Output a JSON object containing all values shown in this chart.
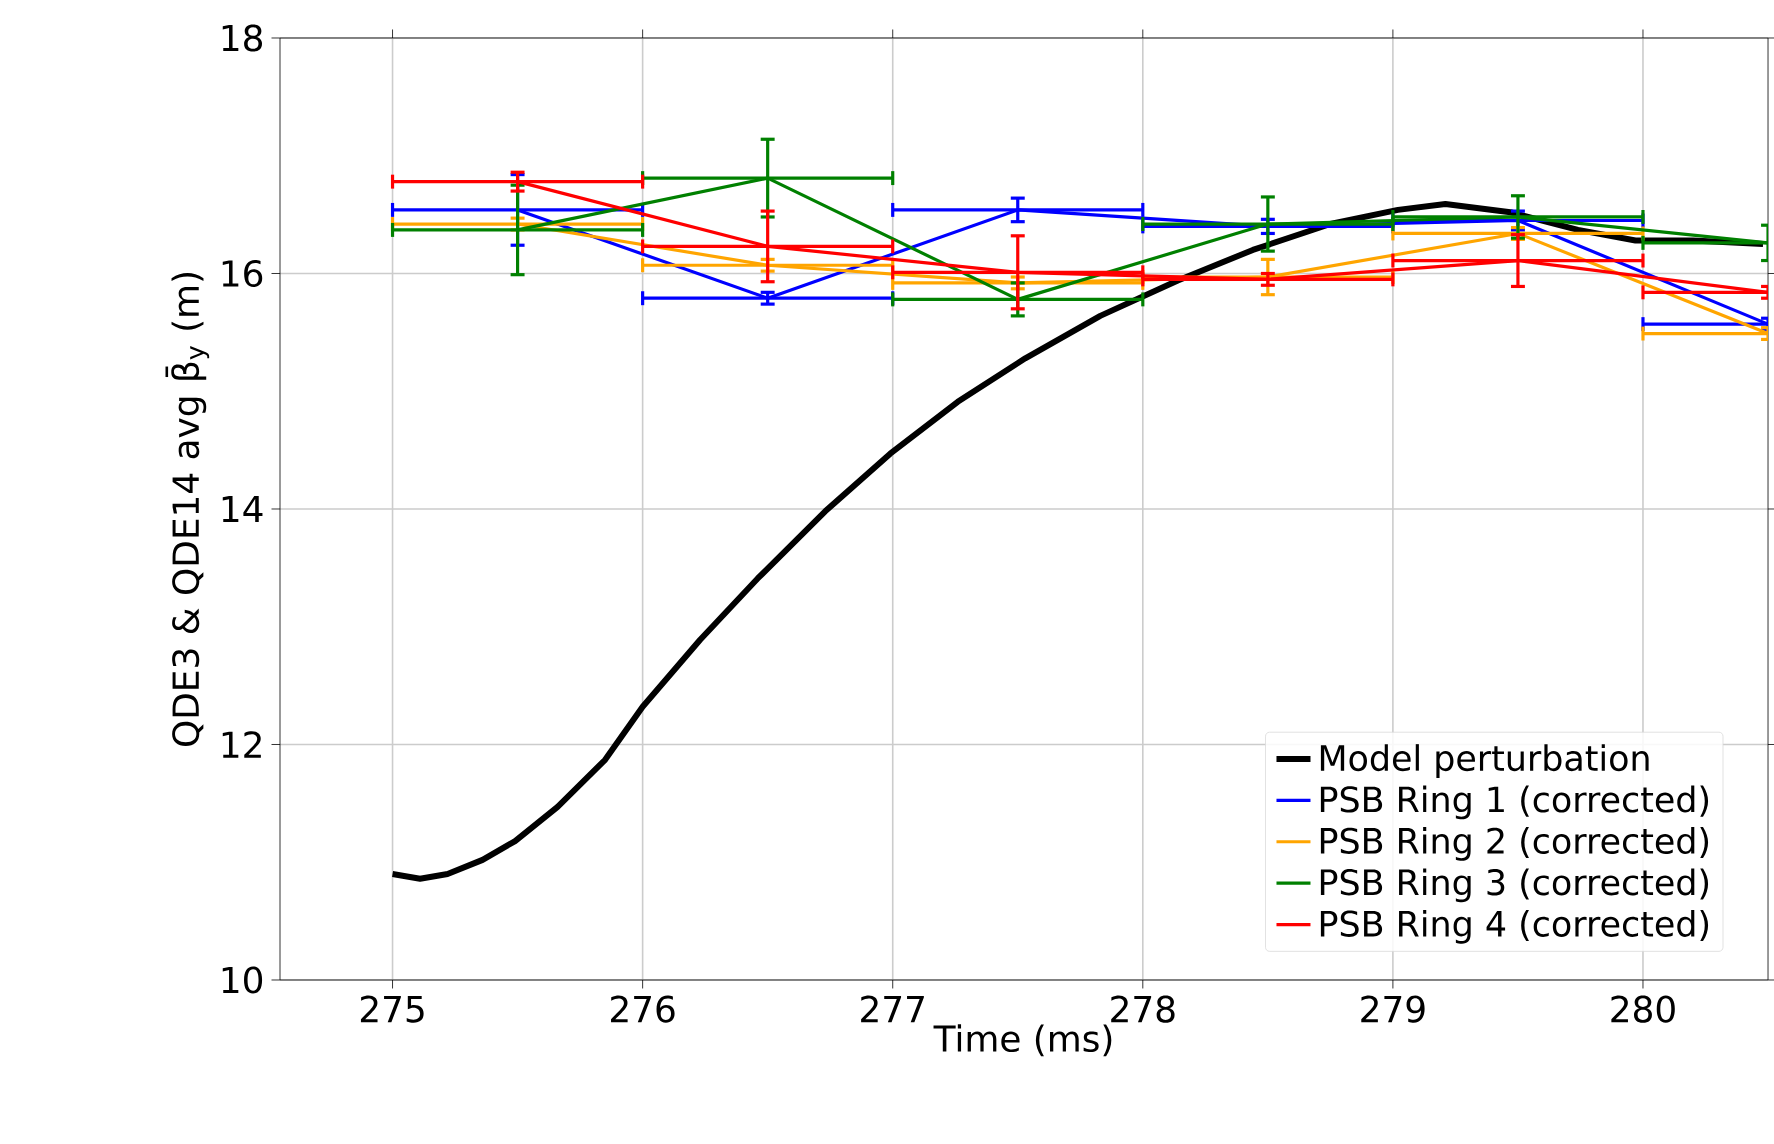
{
  "chart_data": {
    "type": "line",
    "xlabel": "Time (ms)",
    "ylabel": "QDE3 & QDE14 avg β̄$_{y}$ (m)",
    "xlim": [
      274.55,
      280.5
    ],
    "ylim": [
      10,
      18
    ],
    "xticks": [
      275,
      276,
      277,
      278,
      279,
      280
    ],
    "yticks": [
      10,
      12,
      14,
      16,
      18
    ],
    "grid": true,
    "legend": "bottom right",
    "marker": "none",
    "line_style": "solid",
    "series": [
      {
        "name": "Model perturbation",
        "color": "#000000",
        "x": [
          275,
          275.11,
          275.22,
          275.36,
          275.49,
          275.66,
          275.85,
          276.0,
          276.23,
          276.46,
          276.73,
          276.99,
          277.26,
          277.53,
          277.83,
          278.14,
          278.44,
          278.75,
          279.02,
          279.21,
          279.47,
          279.74,
          279.97,
          280.2,
          280.48
        ],
        "values": [
          10.9,
          10.86,
          10.9,
          11.02,
          11.18,
          11.47,
          11.87,
          12.32,
          12.89,
          13.41,
          13.98,
          14.47,
          14.91,
          15.28,
          15.64,
          15.94,
          16.2,
          16.42,
          16.54,
          16.59,
          16.52,
          16.37,
          16.28,
          16.28,
          16.25
        ]
      },
      {
        "name": "PSB Ring 1 (corrected)",
        "color": "#0000ff",
        "x": [
          275.5,
          276.5,
          277.5,
          278.5,
          279.5,
          280.5
        ],
        "values": [
          16.54,
          15.79,
          16.54,
          16.4,
          16.45,
          15.57
        ],
        "errors": [
          0.3,
          0.05,
          0.1,
          0.06,
          0.08,
          0.05
        ],
        "xerrors": [
          0.5,
          0.5,
          0.5,
          0.5,
          0.5,
          0.5
        ]
      },
      {
        "name": "PSB Ring 2 (corrected)",
        "color": "#ffa500",
        "x": [
          275.5,
          276.5,
          277.5,
          278.5,
          279.5,
          280.5
        ],
        "values": [
          16.42,
          16.07,
          15.92,
          15.97,
          16.34,
          15.49
        ],
        "errors": [
          0.05,
          0.05,
          0.05,
          0.15,
          0.05,
          0.05
        ],
        "xerrors": [
          0.5,
          0.5,
          0.5,
          0.5,
          0.5,
          0.5
        ]
      },
      {
        "name": "PSB Ring 3 (corrected)",
        "color": "#008000",
        "x": [
          275.5,
          276.5,
          277.5,
          278.5,
          279.5,
          280.5
        ],
        "values": [
          16.37,
          16.81,
          15.78,
          16.42,
          16.48,
          16.26
        ],
        "errors": [
          0.38,
          0.33,
          0.14,
          0.23,
          0.18,
          0.15
        ],
        "xerrors": [
          0.5,
          0.5,
          0.5,
          0.5,
          0.5,
          0.5
        ]
      },
      {
        "name": "PSB Ring 4 (corrected)",
        "color": "#ff0000",
        "x": [
          275.5,
          276.5,
          277.5,
          278.5,
          279.5,
          280.5
        ],
        "values": [
          16.78,
          16.23,
          16.01,
          15.95,
          16.11,
          15.84
        ],
        "errors": [
          0.08,
          0.3,
          0.31,
          0.05,
          0.22,
          0.05
        ],
        "xerrors": [
          0.5,
          0.5,
          0.5,
          0.5,
          0.5,
          0.5
        ]
      }
    ]
  }
}
